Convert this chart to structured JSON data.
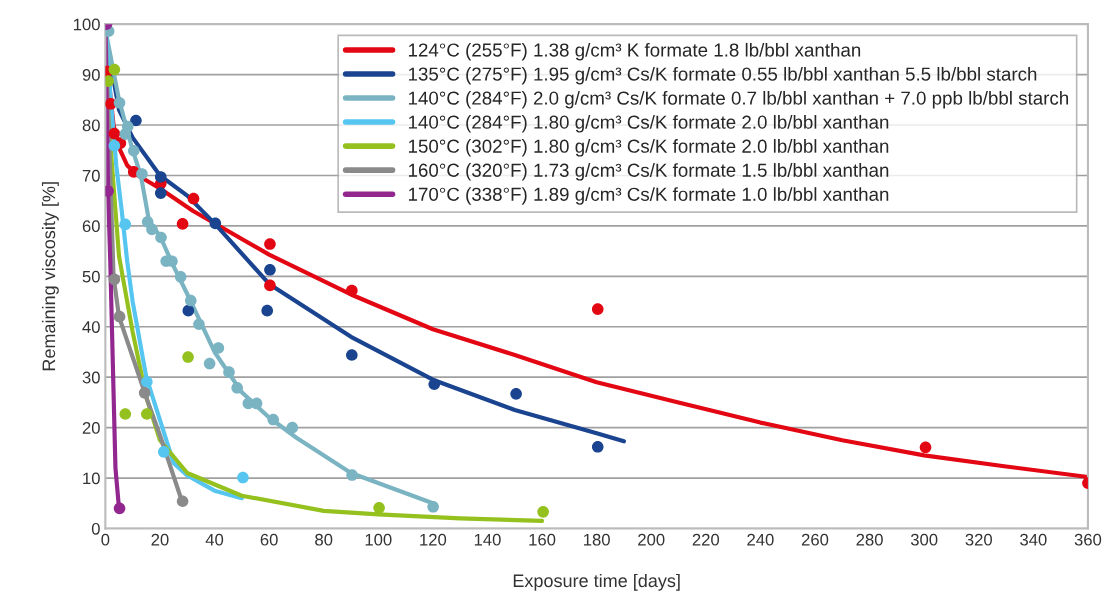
{
  "chart_data": {
    "type": "line",
    "xlabel": "Exposure time [days]",
    "ylabel": "Remaining viscosity [%]",
    "xlim": [
      0,
      360
    ],
    "xticks": [
      0,
      20,
      40,
      60,
      80,
      100,
      120,
      140,
      160,
      180,
      200,
      220,
      240,
      260,
      280,
      300,
      320,
      340,
      360
    ],
    "ylim": [
      0,
      100
    ],
    "yticks": [
      0,
      10,
      20,
      30,
      40,
      50,
      60,
      70,
      80,
      90,
      100
    ],
    "grid": "y",
    "legend": "top right",
    "marker": "circle",
    "series": [
      {
        "marker": "none",
        "name": "124°C (255°F) 1.38 g/cm³ K formate 1.8 lb/bbl xanthan",
        "color": "#e30613",
        "x": [
          1,
          3,
          5,
          8,
          12,
          20,
          32,
          60,
          90,
          120,
          150,
          180,
          210,
          240,
          270,
          300,
          330,
          360
        ],
        "values": [
          90,
          80,
          75.5,
          72,
          70,
          67.4,
          63,
          54.3,
          46.4,
          39.5,
          34.4,
          29,
          25,
          21,
          17.5,
          14.5,
          12.3,
          10.2
        ]
      },
      {
        "marker": "none",
        "name": "135°C (275°F) 1.95 g/cm³ Cs/K formate 0.55 lb/bbl xanthan 5.5 lb/bbl starch",
        "color": "#1a4490",
        "x": [
          0,
          5,
          10,
          20,
          30,
          40,
          60,
          90,
          120,
          150,
          180,
          190
        ],
        "values": [
          98,
          83,
          77.5,
          70,
          66,
          60.5,
          48.5,
          38,
          29.5,
          23.5,
          18.9,
          17.3
        ]
      },
      {
        "marker": "none",
        "name": "140°C (284°F) 2.0 g/cm³ Cs/K formate 0.7 lb/bbl xanthan + 7.0 ppb lb/bbl starch",
        "color": "#7ab4c2",
        "x": [
          0,
          5,
          10,
          13,
          16,
          20,
          25,
          30,
          40,
          50,
          60,
          70,
          90,
          120
        ],
        "values": [
          99,
          85,
          75,
          70,
          61,
          58,
          52,
          46.5,
          35,
          27,
          22,
          18,
          11,
          5
        ]
      },
      {
        "marker": "none",
        "name": "140°C (284°F) 1.80 g/cm³ Cs/K formate 2.0 lb/bbl xanthan",
        "color": "#56c5ef",
        "x": [
          0,
          2,
          4,
          6,
          8,
          10,
          15,
          25,
          30,
          40,
          50
        ],
        "values": [
          100,
          85,
          72,
          63,
          53,
          45,
          30,
          13,
          10.5,
          7.5,
          6
        ]
      },
      {
        "marker": "none",
        "name": "150°C (302°F) 1.80 g/cm³ Cs/K formate 2.0 lb/bbl xanthan",
        "color": "#95c11f",
        "x": [
          0,
          2,
          5,
          10,
          15,
          20,
          30,
          50,
          80,
          100,
          130,
          160
        ],
        "values": [
          90,
          75,
          54,
          39,
          26,
          17.5,
          11,
          6.5,
          3.5,
          2.8,
          2,
          1.5
        ]
      },
      {
        "marker": "none",
        "name": "160°C (320°F) 1.73 g/cm³ Cs/K formate 1.5 lb/bbl xanthan",
        "color": "#8a8a8a",
        "x": [
          0,
          3,
          5,
          10,
          15,
          20,
          28
        ],
        "values": [
          100,
          50,
          42,
          34,
          26,
          18.5,
          5.5
        ]
      },
      {
        "marker": "none",
        "name": "170°C (338°F) 1.89 g/cm³ Cs/K formate 1.0 lb/bbl xanthan",
        "color": "#92278f",
        "x": [
          0,
          1,
          1.8,
          3.7,
          5
        ],
        "values": [
          100,
          67,
          53,
          12,
          4
        ]
      },
      {
        "type": "scatter",
        "color": "#e30613",
        "x": [
          0.6,
          2,
          3.3,
          5.5,
          10.4,
          20.3,
          32.3,
          28.3,
          60.3,
          60.3,
          90.3,
          180.4,
          300.5,
          360
        ],
        "values": [
          90.6,
          84.2,
          78.3,
          76.4,
          70.7,
          68.4,
          65.4,
          60.4,
          56.4,
          48.2,
          47.2,
          43.5,
          16.1,
          9
        ]
      },
      {
        "type": "scatter",
        "color": "#1a4490",
        "x": [
          11.2,
          20.3,
          20.3,
          40.3,
          60.3,
          59.3,
          30.4,
          90.3,
          120.5,
          150.5,
          180.4
        ],
        "values": [
          80.9,
          69.7,
          66.5,
          60.5,
          51.3,
          43.2,
          43.2,
          34.4,
          28.6,
          26.7,
          16.2
        ]
      },
      {
        "type": "scatter",
        "color": "#7ab4c2",
        "x": [
          1.2,
          5.2,
          8.2,
          7.3,
          10.4,
          13.4,
          15.5,
          17.1,
          20.4,
          22.3,
          24.4,
          27.6,
          31.3,
          34.3,
          41.4,
          38.2,
          45.3,
          48.3,
          52.4,
          55.4,
          61.5,
          68.5,
          90.4,
          120.1
        ],
        "values": [
          98.6,
          84.4,
          79.7,
          78.2,
          74.9,
          70.3,
          60.8,
          59.3,
          57.7,
          53,
          53,
          49.9,
          45.2,
          40.5,
          35.8,
          32.7,
          31,
          27.9,
          24.8,
          24.8,
          21.6,
          20,
          10.6,
          4.3
        ]
      },
      {
        "type": "scatter",
        "color": "#56c5ef",
        "x": [
          3.3,
          7.3,
          15.2,
          21.4,
          50.4
        ],
        "values": [
          75.9,
          60.3,
          29.1,
          15.2,
          10.1
        ]
      },
      {
        "type": "scatter",
        "color": "#95c11f",
        "x": [
          3.3,
          1,
          7.3,
          15.2,
          30.3,
          100.3,
          160.4
        ],
        "values": [
          91,
          88.7,
          22.7,
          22.7,
          34,
          4.1,
          3.3
        ]
      },
      {
        "type": "scatter",
        "color": "#8a8a8a",
        "x": [
          3.3,
          5.2,
          14.4,
          28.3
        ],
        "values": [
          49.4,
          42,
          26.9,
          5.4
        ]
      },
      {
        "type": "scatter",
        "color": "#92278f",
        "x": [
          0.4,
          1,
          5.2
        ],
        "values": [
          100,
          66.9,
          4
        ]
      }
    ]
  }
}
